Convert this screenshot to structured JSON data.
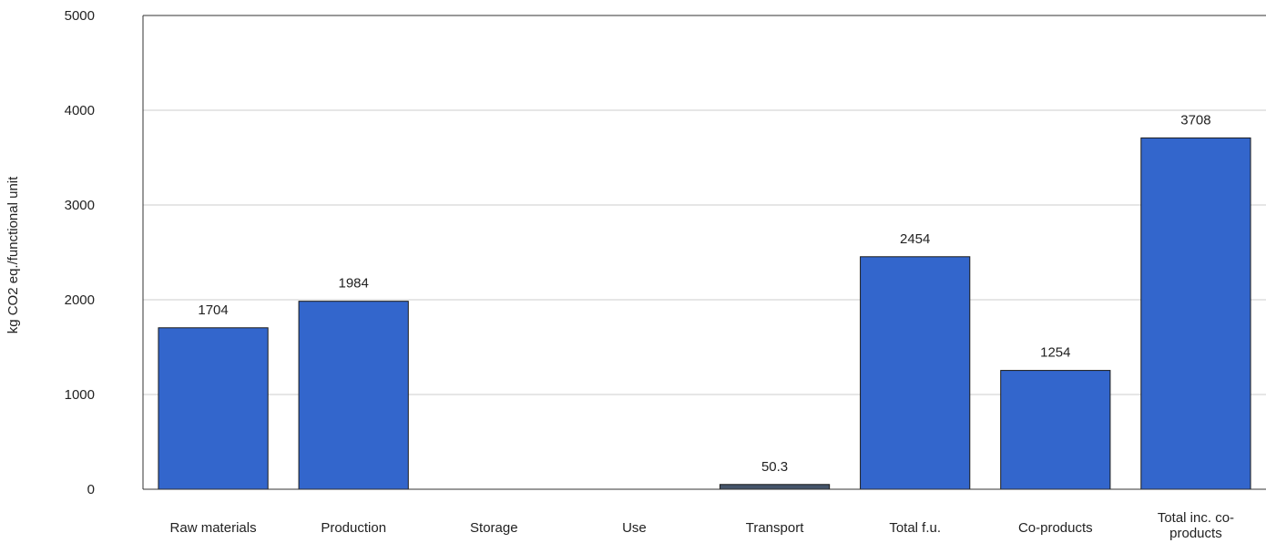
{
  "chart_data": {
    "type": "bar",
    "title": "",
    "xlabel": "",
    "ylabel": "kg CO2 eq./functional unit",
    "ylim": [
      0,
      5000
    ],
    "yticks": [
      0,
      1000,
      2000,
      3000,
      4000,
      5000
    ],
    "grid": true,
    "legend": "none",
    "categories": [
      [
        "Raw materials"
      ],
      [
        "Production"
      ],
      [
        "Storage"
      ],
      [
        "Use"
      ],
      [
        "Transport"
      ],
      [
        "Total f.u."
      ],
      [
        "Co-products"
      ],
      [
        "Total inc. co-",
        "products"
      ]
    ],
    "series": [
      {
        "values": [
          1704,
          1984,
          null,
          null,
          50.3,
          2454,
          1254,
          3708
        ],
        "labels": [
          "1704",
          "1984",
          "",
          "",
          "50.3",
          "2454",
          "1254",
          "3708"
        ],
        "colors": [
          "#3366cc",
          "#3366cc",
          "#3366cc",
          "#3366cc",
          "#44546a",
          "#3366cc",
          "#3366cc",
          "#3366cc"
        ]
      }
    ],
    "colors": {
      "bar": "#3366cc",
      "bar_stroke": "#1a1a1a",
      "grid": "#cccccc",
      "axis": "#333333"
    }
  }
}
